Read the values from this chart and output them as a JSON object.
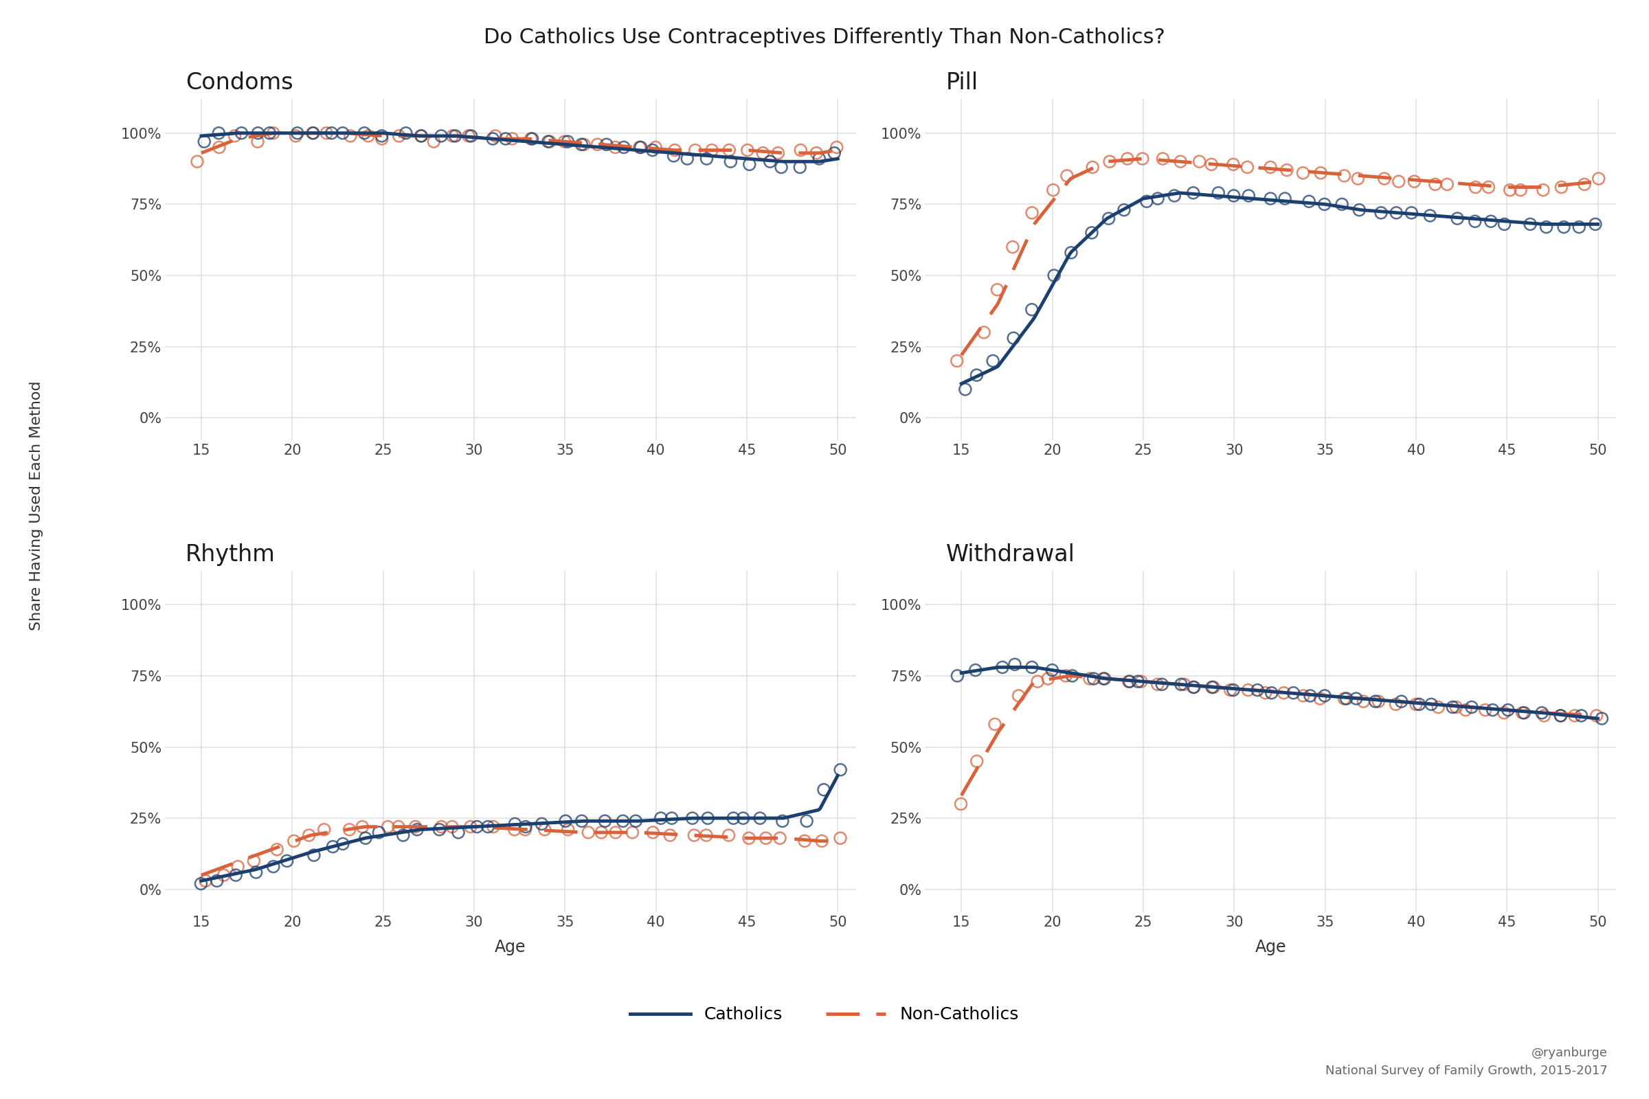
{
  "title": "Do Catholics Use Contraceptives Differently Than Non-Catholics?",
  "panels": [
    "Condoms",
    "Pill",
    "Rhythm",
    "Withdrawal"
  ],
  "xlabel": "Age",
  "ylabel": "Share Having Used Each Method",
  "credit": "@ryanburge\nNational Survey of Family Growth, 2015-2017",
  "catholic_color": "#1B3F6E",
  "noncatholic_color": "#D9623B",
  "bg_color": "#ffffff",
  "grid_color": "#e0e0e0",
  "yticks": [
    0,
    25,
    50,
    75,
    100
  ],
  "ytick_labels": [
    "0%",
    "25%",
    "50%",
    "75%",
    "100%"
  ],
  "condoms_cath_sx": [
    15,
    16,
    17,
    18,
    19,
    20,
    21,
    22,
    23,
    24,
    25,
    26,
    27,
    28,
    29,
    30,
    31,
    32,
    33,
    34,
    35,
    36,
    37,
    38,
    39,
    40,
    41,
    42,
    43,
    44,
    45,
    46,
    47,
    48,
    49,
    50
  ],
  "condoms_cath_sy": [
    97,
    100,
    100,
    100,
    100,
    100,
    100,
    100,
    100,
    100,
    99,
    100,
    99,
    99,
    99,
    99,
    98,
    98,
    98,
    97,
    97,
    96,
    96,
    95,
    95,
    94,
    92,
    91,
    91,
    90,
    89,
    90,
    88,
    88,
    91,
    93
  ],
  "condoms_ncath_sx": [
    15,
    16,
    17,
    18,
    19,
    20,
    21,
    22,
    23,
    24,
    25,
    26,
    27,
    28,
    29,
    30,
    31,
    32,
    33,
    34,
    35,
    36,
    37,
    38,
    39,
    40,
    41,
    42,
    43,
    44,
    45,
    46,
    47,
    48,
    49,
    50
  ],
  "condoms_ncath_sy": [
    90,
    95,
    99,
    97,
    100,
    99,
    100,
    100,
    99,
    99,
    98,
    99,
    99,
    97,
    99,
    99,
    99,
    98,
    98,
    97,
    97,
    96,
    96,
    95,
    95,
    95,
    94,
    94,
    94,
    94,
    94,
    93,
    93,
    94,
    93,
    95
  ],
  "condoms_cath_lx": [
    15,
    17,
    19,
    21,
    23,
    25,
    27,
    29,
    31,
    33,
    35,
    37,
    39,
    41,
    43,
    45,
    47,
    49,
    50
  ],
  "condoms_cath_ly": [
    99,
    100,
    100,
    100,
    100,
    100,
    99,
    99,
    98,
    97,
    96,
    95,
    94,
    93,
    92,
    91,
    90,
    90,
    91
  ],
  "condoms_ncath_lx": [
    15,
    17,
    19,
    21,
    23,
    25,
    27,
    29,
    31,
    33,
    35,
    37,
    39,
    41,
    43,
    45,
    47,
    49,
    50
  ],
  "condoms_ncath_ly": [
    93,
    98,
    100,
    100,
    100,
    99,
    99,
    99,
    98,
    98,
    97,
    96,
    95,
    94,
    94,
    94,
    93,
    93,
    94
  ],
  "pill_cath_sx": [
    15,
    16,
    17,
    18,
    19,
    20,
    21,
    22,
    23,
    24,
    25,
    26,
    27,
    28,
    29,
    30,
    31,
    32,
    33,
    34,
    35,
    36,
    37,
    38,
    39,
    40,
    41,
    42,
    43,
    44,
    45,
    46,
    47,
    48,
    49,
    50
  ],
  "pill_cath_sy": [
    10,
    15,
    20,
    28,
    38,
    50,
    58,
    65,
    70,
    73,
    76,
    77,
    78,
    79,
    79,
    78,
    78,
    77,
    77,
    76,
    75,
    75,
    73,
    72,
    72,
    72,
    71,
    70,
    69,
    69,
    68,
    68,
    67,
    67,
    67,
    68
  ],
  "pill_ncath_sx": [
    15,
    16,
    17,
    18,
    19,
    20,
    21,
    22,
    23,
    24,
    25,
    26,
    27,
    28,
    29,
    30,
    31,
    32,
    33,
    34,
    35,
    36,
    37,
    38,
    39,
    40,
    41,
    42,
    43,
    44,
    45,
    46,
    47,
    48,
    49,
    50
  ],
  "pill_ncath_sy": [
    20,
    30,
    45,
    60,
    72,
    80,
    85,
    88,
    90,
    91,
    91,
    91,
    90,
    90,
    89,
    89,
    88,
    88,
    87,
    86,
    86,
    85,
    84,
    84,
    83,
    83,
    82,
    82,
    81,
    81,
    80,
    80,
    80,
    81,
    82,
    84
  ],
  "pill_cath_lx": [
    15,
    17,
    19,
    21,
    23,
    25,
    27,
    29,
    31,
    33,
    35,
    37,
    39,
    41,
    43,
    45,
    47,
    50
  ],
  "pill_cath_ly": [
    12,
    18,
    35,
    58,
    70,
    77,
    79,
    78,
    77,
    76,
    75,
    73,
    72,
    71,
    70,
    69,
    68,
    68
  ],
  "pill_ncath_lx": [
    15,
    17,
    19,
    21,
    23,
    25,
    27,
    29,
    31,
    33,
    35,
    37,
    39,
    41,
    43,
    45,
    47,
    50
  ],
  "pill_ncath_ly": [
    22,
    40,
    68,
    84,
    90,
    91,
    90,
    89,
    88,
    87,
    86,
    85,
    84,
    83,
    82,
    81,
    81,
    83
  ],
  "rhythm_cath_sx": [
    15,
    16,
    17,
    18,
    19,
    20,
    21,
    22,
    23,
    24,
    25,
    26,
    27,
    28,
    29,
    30,
    31,
    32,
    33,
    34,
    35,
    36,
    37,
    38,
    39,
    40,
    41,
    42,
    43,
    44,
    45,
    46,
    47,
    48,
    49,
    50
  ],
  "rhythm_cath_sy": [
    2,
    3,
    5,
    6,
    8,
    10,
    12,
    15,
    16,
    18,
    20,
    19,
    21,
    21,
    20,
    22,
    22,
    23,
    22,
    23,
    24,
    24,
    24,
    24,
    24,
    25,
    25,
    25,
    25,
    25,
    25,
    25,
    24,
    24,
    35,
    42
  ],
  "rhythm_ncath_sx": [
    15,
    16,
    17,
    18,
    19,
    20,
    21,
    22,
    23,
    24,
    25,
    26,
    27,
    28,
    29,
    30,
    31,
    32,
    33,
    34,
    35,
    36,
    37,
    38,
    39,
    40,
    41,
    42,
    43,
    44,
    45,
    46,
    47,
    48,
    49,
    50
  ],
  "rhythm_ncath_sy": [
    3,
    5,
    8,
    10,
    14,
    17,
    19,
    21,
    21,
    22,
    22,
    22,
    22,
    22,
    22,
    22,
    22,
    21,
    21,
    21,
    21,
    20,
    20,
    20,
    20,
    20,
    19,
    19,
    19,
    19,
    18,
    18,
    18,
    17,
    17,
    18
  ],
  "rhythm_cath_lx": [
    15,
    18,
    21,
    24,
    27,
    30,
    33,
    36,
    39,
    42,
    45,
    47,
    49,
    50
  ],
  "rhythm_cath_ly": [
    3,
    7,
    13,
    18,
    21,
    22,
    23,
    24,
    24,
    25,
    25,
    25,
    28,
    40
  ],
  "rhythm_ncath_lx": [
    15,
    18,
    21,
    24,
    27,
    30,
    33,
    36,
    39,
    42,
    45,
    47,
    49,
    50
  ],
  "rhythm_ncath_ly": [
    5,
    12,
    19,
    22,
    22,
    22,
    21,
    20,
    20,
    19,
    18,
    18,
    17,
    17
  ],
  "withdrawal_cath_sx": [
    15,
    16,
    17,
    18,
    19,
    20,
    21,
    22,
    23,
    24,
    25,
    26,
    27,
    28,
    29,
    30,
    31,
    32,
    33,
    34,
    35,
    36,
    37,
    38,
    39,
    40,
    41,
    42,
    43,
    44,
    45,
    46,
    47,
    48,
    49,
    50
  ],
  "withdrawal_cath_sy": [
    75,
    77,
    78,
    79,
    78,
    77,
    75,
    74,
    74,
    73,
    73,
    72,
    72,
    71,
    71,
    70,
    70,
    69,
    69,
    68,
    68,
    67,
    67,
    66,
    66,
    65,
    65,
    64,
    64,
    63,
    63,
    62,
    62,
    61,
    61,
    60
  ],
  "withdrawal_ncath_sx": [
    15,
    16,
    17,
    18,
    19,
    20,
    21,
    22,
    23,
    24,
    25,
    26,
    27,
    28,
    29,
    30,
    31,
    32,
    33,
    34,
    35,
    36,
    37,
    38,
    39,
    40,
    41,
    42,
    43,
    44,
    45,
    46,
    47,
    48,
    49,
    50
  ],
  "withdrawal_ncath_sy": [
    30,
    45,
    58,
    68,
    73,
    74,
    75,
    74,
    74,
    73,
    73,
    72,
    72,
    71,
    71,
    70,
    70,
    69,
    69,
    68,
    67,
    67,
    66,
    66,
    65,
    65,
    64,
    64,
    63,
    63,
    62,
    62,
    61,
    61,
    61,
    61
  ],
  "withdrawal_cath_lx": [
    15,
    17,
    19,
    21,
    23,
    25,
    27,
    29,
    31,
    33,
    35,
    37,
    39,
    41,
    43,
    45,
    47,
    50
  ],
  "withdrawal_cath_ly": [
    76,
    78,
    78,
    76,
    74,
    73,
    72,
    71,
    70,
    69,
    68,
    67,
    66,
    65,
    64,
    63,
    62,
    60
  ],
  "withdrawal_ncath_lx": [
    15,
    17,
    19,
    21,
    23,
    25,
    27,
    29,
    31,
    33,
    35,
    37,
    39,
    41,
    43,
    45,
    47,
    50
  ],
  "withdrawal_ncath_ly": [
    33,
    55,
    73,
    75,
    74,
    73,
    72,
    71,
    70,
    69,
    68,
    67,
    66,
    65,
    64,
    63,
    62,
    61
  ]
}
